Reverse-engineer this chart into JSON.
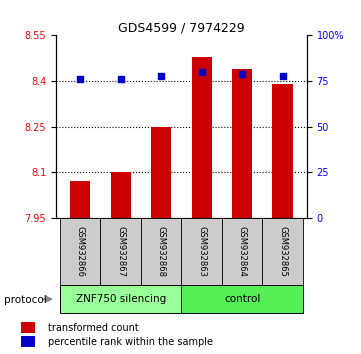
{
  "title": "GDS4599 / 7974229",
  "samples": [
    "GSM932866",
    "GSM932867",
    "GSM932868",
    "GSM932863",
    "GSM932864",
    "GSM932865"
  ],
  "red_values": [
    8.07,
    8.1,
    8.25,
    8.48,
    8.44,
    8.39
  ],
  "blue_values": [
    76,
    76,
    78,
    80,
    79,
    78
  ],
  "ylim_left": [
    7.95,
    8.55
  ],
  "ylim_right": [
    0,
    100
  ],
  "yticks_left": [
    7.95,
    8.1,
    8.25,
    8.4,
    8.55
  ],
  "yticks_right": [
    0,
    25,
    50,
    75,
    100
  ],
  "baseline": 7.95,
  "groups": [
    {
      "label": "ZNF750 silencing",
      "color": "#66ff66"
    },
    {
      "label": "control",
      "color": "#44ee44"
    }
  ],
  "group_bg_color_1": "#99ff99",
  "group_bg_color_2": "#55ee55",
  "sample_bg_color": "#cccccc",
  "bar_color": "#cc0000",
  "dot_color": "#0000cc",
  "bar_width": 0.5,
  "legend_red": "transformed count",
  "legend_blue": "percentile rank within the sample",
  "protocol_label": "protocol"
}
